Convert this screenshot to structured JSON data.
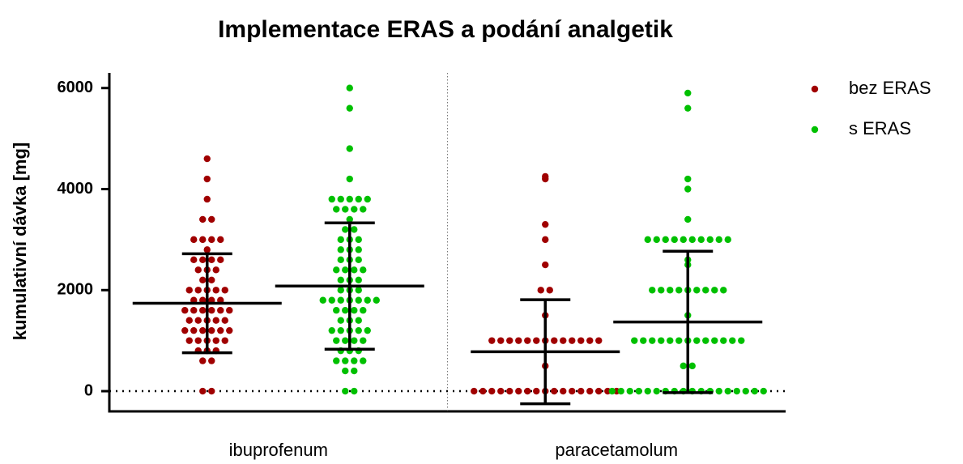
{
  "chart_data": {
    "type": "dot",
    "title": "Implementace ERAS a podání analgetik",
    "y_label": "kumulativní dávka [mg]",
    "categories": [
      "ibuprofenum",
      "paracetamolum"
    ],
    "ylim": [
      -400,
      6300
    ],
    "yticks": [
      0,
      2000,
      4000,
      6000
    ],
    "legend": "top-right",
    "series": [
      {
        "name": "bez ERAS",
        "color": "#a00000",
        "values": [
          [
            0,
            0,
            600,
            600,
            800,
            800,
            800,
            1000,
            1000,
            1000,
            1000,
            1000,
            1200,
            1200,
            1200,
            1200,
            1200,
            1200,
            1400,
            1400,
            1400,
            1400,
            1400,
            1600,
            1600,
            1600,
            1600,
            1600,
            1600,
            1800,
            1800,
            1800,
            1800,
            2000,
            2000,
            2000,
            2000,
            2000,
            2200,
            2200,
            2400,
            2400,
            2400,
            2600,
            2600,
            2600,
            2600,
            2800,
            3000,
            3000,
            3000,
            3000,
            3400,
            3400,
            3800,
            4200,
            4600
          ],
          [
            0,
            0,
            0,
            0,
            0,
            0,
            0,
            0,
            0,
            0,
            0,
            0,
            0,
            0,
            0,
            0,
            0,
            500,
            1000,
            1000,
            1000,
            1000,
            1000,
            1000,
            1000,
            1000,
            1000,
            1000,
            1000,
            1000,
            1000,
            1500,
            2000,
            2000,
            2500,
            3000,
            3300,
            4200,
            4250
          ]
        ],
        "mean": [
          1740,
          780
        ],
        "sd": [
          980,
          1030
        ]
      },
      {
        "name": "s ERAS",
        "color": "#00c000",
        "values": [
          [
            0,
            0,
            400,
            400,
            600,
            600,
            600,
            600,
            800,
            800,
            800,
            1000,
            1000,
            1000,
            1000,
            1200,
            1200,
            1200,
            1200,
            1200,
            1400,
            1400,
            1400,
            1600,
            1600,
            1600,
            1600,
            1800,
            1800,
            1800,
            1800,
            1800,
            1800,
            1800,
            2000,
            2000,
            2000,
            2200,
            2200,
            2200,
            2400,
            2400,
            2400,
            2400,
            2600,
            2600,
            2600,
            2800,
            2800,
            2800,
            3000,
            3000,
            3000,
            3200,
            3200,
            3400,
            3600,
            3600,
            3600,
            3600,
            3800,
            3800,
            3800,
            3800,
            3800,
            4200,
            4800,
            5600,
            6000
          ],
          [
            0,
            0,
            0,
            0,
            0,
            0,
            0,
            0,
            0,
            0,
            0,
            0,
            0,
            0,
            0,
            0,
            0,
            0,
            500,
            500,
            1000,
            1000,
            1000,
            1000,
            1000,
            1000,
            1000,
            1000,
            1000,
            1000,
            1000,
            1000,
            1000,
            1500,
            2000,
            2000,
            2000,
            2000,
            2000,
            2000,
            2000,
            2000,
            2000,
            2500,
            2600,
            3000,
            3000,
            3000,
            3000,
            3000,
            3000,
            3000,
            3000,
            3000,
            3000,
            3400,
            4000,
            4200,
            5600,
            5900
          ]
        ],
        "mean": [
          2080,
          1370
        ],
        "sd": [
          1250,
          1400
        ]
      }
    ]
  }
}
